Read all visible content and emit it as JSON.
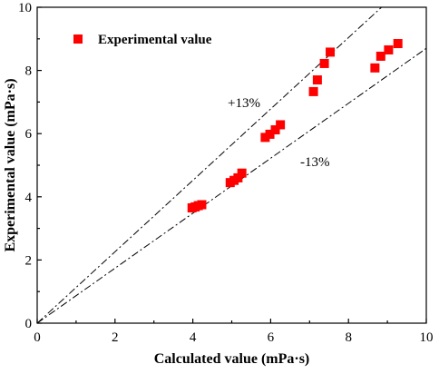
{
  "chart_data": {
    "type": "scatter",
    "xlabel": "Calculated value (mPa·s)",
    "ylabel": "Experimental value (mPa·s)",
    "xlim": [
      0,
      10
    ],
    "ylim": [
      0,
      10
    ],
    "x_ticks": [
      "0",
      "2",
      "4",
      "6",
      "8",
      "10"
    ],
    "y_ticks": [
      "0",
      "2",
      "4",
      "6",
      "8",
      "10"
    ],
    "grid": false,
    "legend_position": "top-left",
    "series": [
      {
        "name": "Experimental value",
        "color": "#ff0000",
        "marker": "square",
        "points": [
          {
            "x": 3.98,
            "y": 3.65
          },
          {
            "x": 4.06,
            "y": 3.68
          },
          {
            "x": 4.14,
            "y": 3.72
          },
          {
            "x": 4.23,
            "y": 3.75
          },
          {
            "x": 4.96,
            "y": 4.45
          },
          {
            "x": 5.06,
            "y": 4.52
          },
          {
            "x": 5.16,
            "y": 4.6
          },
          {
            "x": 5.26,
            "y": 4.75
          },
          {
            "x": 5.86,
            "y": 5.88
          },
          {
            "x": 5.98,
            "y": 5.98
          },
          {
            "x": 6.12,
            "y": 6.12
          },
          {
            "x": 6.25,
            "y": 6.28
          },
          {
            "x": 7.1,
            "y": 7.33
          },
          {
            "x": 7.2,
            "y": 7.7
          },
          {
            "x": 7.38,
            "y": 8.22
          },
          {
            "x": 7.53,
            "y": 8.58
          },
          {
            "x": 8.68,
            "y": 8.08
          },
          {
            "x": 8.83,
            "y": 8.45
          },
          {
            "x": 9.03,
            "y": 8.65
          },
          {
            "x": 9.27,
            "y": 8.85
          }
        ]
      }
    ],
    "reference_lines": [
      {
        "label": "+13%",
        "slope": 1.13
      },
      {
        "label": "-13%",
        "slope": 0.87
      }
    ]
  }
}
